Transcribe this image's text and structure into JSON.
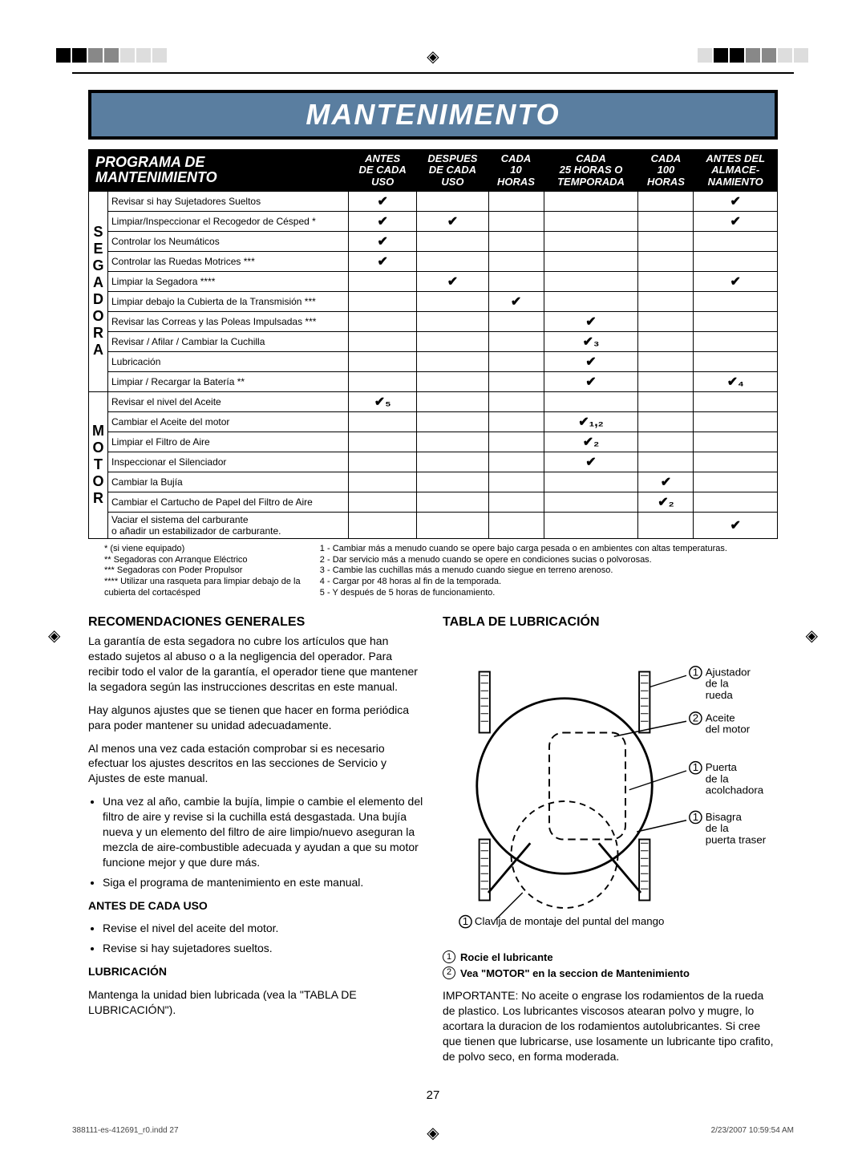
{
  "banner_title": "MANTENIMENTO",
  "table": {
    "header_title": "PROGRAMA DE\nMANTENIMIENTO",
    "cols": [
      "ANTES\nDE CADA\nUSO",
      "DESPUES\nDE CADA\nUSO",
      "CADA\n10\nHORAS",
      "CADA\n25 HORAS O\nTEMPORADA",
      "CADA\n100\nHORAS",
      "ANTES DEL\nALMACE-\nNAMIENTO"
    ],
    "side_segadora": "SEGADORA",
    "side_motor": "MOTOR",
    "rows_segadora": [
      {
        "task": "Revisar si hay Sujetadores Sueltos",
        "marks": [
          "✔",
          "",
          "",
          "",
          "",
          "✔"
        ]
      },
      {
        "task": "Limpiar/Inspeccionar el Recogedor de Césped *",
        "marks": [
          "✔",
          "✔",
          "",
          "",
          "",
          "✔"
        ]
      },
      {
        "task": "Controlar los Neumáticos",
        "marks": [
          "✔",
          "",
          "",
          "",
          "",
          ""
        ]
      },
      {
        "task": "Controlar las Ruedas Motrices ***",
        "marks": [
          "✔",
          "",
          "",
          "",
          "",
          ""
        ]
      },
      {
        "task": "Limpiar la Segadora ****",
        "marks": [
          "",
          "✔",
          "",
          "",
          "",
          "✔"
        ]
      },
      {
        "task": "Limpiar debajo la Cubierta de la Transmisión ***",
        "marks": [
          "",
          "",
          "✔",
          "",
          "",
          ""
        ]
      },
      {
        "task": "Revisar las Correas y las Poleas Impulsadas ***",
        "marks": [
          "",
          "",
          "",
          "✔",
          "",
          ""
        ]
      },
      {
        "task": "Revisar / Afilar / Cambiar la Cuchilla",
        "marks": [
          "",
          "",
          "",
          "✔₃",
          "",
          ""
        ]
      },
      {
        "task": "Lubricación",
        "marks": [
          "",
          "",
          "",
          "✔",
          "",
          ""
        ]
      },
      {
        "task": "Limpiar / Recargar la Batería **",
        "marks": [
          "",
          "",
          "",
          "✔",
          "",
          "✔₄"
        ]
      }
    ],
    "rows_motor": [
      {
        "task": "Revisar el nivel del Aceite",
        "marks": [
          "✔₅",
          "",
          "",
          "",
          "",
          ""
        ]
      },
      {
        "task": "Cambiar el Aceite del motor",
        "marks": [
          "",
          "",
          "",
          "✔₁,₂",
          "",
          ""
        ]
      },
      {
        "task": "Limpiar el Filtro de Aire",
        "marks": [
          "",
          "",
          "",
          "✔₂",
          "",
          ""
        ]
      },
      {
        "task": "Inspeccionar el Silenciador",
        "marks": [
          "",
          "",
          "",
          "✔",
          "",
          ""
        ]
      },
      {
        "task": "Cambiar la Bujía",
        "marks": [
          "",
          "",
          "",
          "",
          "✔",
          ""
        ]
      },
      {
        "task": "Cambiar el Cartucho de Papel del Filtro de Aire",
        "marks": [
          "",
          "",
          "",
          "",
          "✔₂",
          ""
        ]
      },
      {
        "task": "Vaciar el sistema del carburante\no añadir un estabilizador de carburante.",
        "marks": [
          "",
          "",
          "",
          "",
          "",
          "✔"
        ]
      }
    ]
  },
  "notes": [
    "* (si viene equipado)",
    "** Segadoras con Arranque Eléctrico",
    "*** Segadoras con Poder Propulsor",
    "**** Utilizar una rasqueta para limpiar debajo de la cubierta del cortacésped",
    "1 - Cambiar más a menudo cuando se opere bajo carga pesada o en ambientes con altas temperaturas.",
    "2 - Dar servicio más a menudo cuando se opere en condiciones sucias o polvorosas.",
    "3 - Cambie las cuchillas más a menudo cuando siegue en terreno arenoso.",
    "4 - Cargar por 48 horas al fin de la temporada.",
    "5 - Y después de 5 horas de funcionamiento."
  ],
  "left": {
    "h1": "RECOMENDACIONES GENERALES",
    "p1": "La garantía de esta segadora no cubre los artículos que han estado sujetos al abuso o a la negligencia del operador. Para recibir todo el valor de la garantía, el operador tiene que mantener la segadora según las instrucciones descritas en este manual.",
    "p2": "Hay algunos ajustes que se tienen que hacer en forma periódica para poder mantener su unidad adecuadamente.",
    "p3": "Al menos una vez cada estación comprobar si es necesario efectuar los ajustes descritos en las secciones de Servicio y Ajustes de este manual.",
    "b1": "Una vez al año, cambie la bujía, limpie o cambie el elemento del filtro de aire y revise si la cuchilla está desgastada. Una bujía nueva y un elemento del filtro de aire limpio/nuevo aseguran la mezcla de aire-combustible adecuada y ayudan a que su motor funcione mejor y que dure más.",
    "b2": "Siga el programa de mantenimiento en este manual.",
    "h2": "ANTES DE CADA USO",
    "b3": "Revise el nivel del aceite del motor.",
    "b4": "Revise si hay sujetadores sueltos.",
    "h3": "LUBRICACIÓN",
    "p4": "Mantenga la unidad bien lubricada (vea la \"TABLA DE LUBRICACIÓN\")."
  },
  "right": {
    "h1": "TABLA DE LUBRICACIÓN",
    "labels": [
      {
        "n": "1",
        "t": "Ajustador de la rueda"
      },
      {
        "n": "2",
        "t": "Aceite del motor"
      },
      {
        "n": "1",
        "t": "Puerta de la acolchadora"
      },
      {
        "n": "1",
        "t": "Bisagra de la puerta traser"
      }
    ],
    "bottom_label_n": "1",
    "bottom_label_t": "Clavija de montaje del puntal del mango",
    "leg1_n": "1",
    "leg1_t": "Rocie el lubricante",
    "leg2_n": "2",
    "leg2_t": "Vea \"MOTOR\" en la seccion de Mantenimiento",
    "important": "IMPORTANTE: No aceite o engrase los rodamientos de la rueda de plastico. Los lubricantes viscosos atearan polvo y mugre, lo acortara la duracion de los rodamientos autolubricantes. Si cree que tienen que lubricarse, use losamente un lubricante tipo crafito, de polvo seco, en forma moderada."
  },
  "page_number": "27",
  "footer_left": "388111-es-412691_r0.indd   27",
  "footer_right": "2/23/2007   10:59:54 AM"
}
